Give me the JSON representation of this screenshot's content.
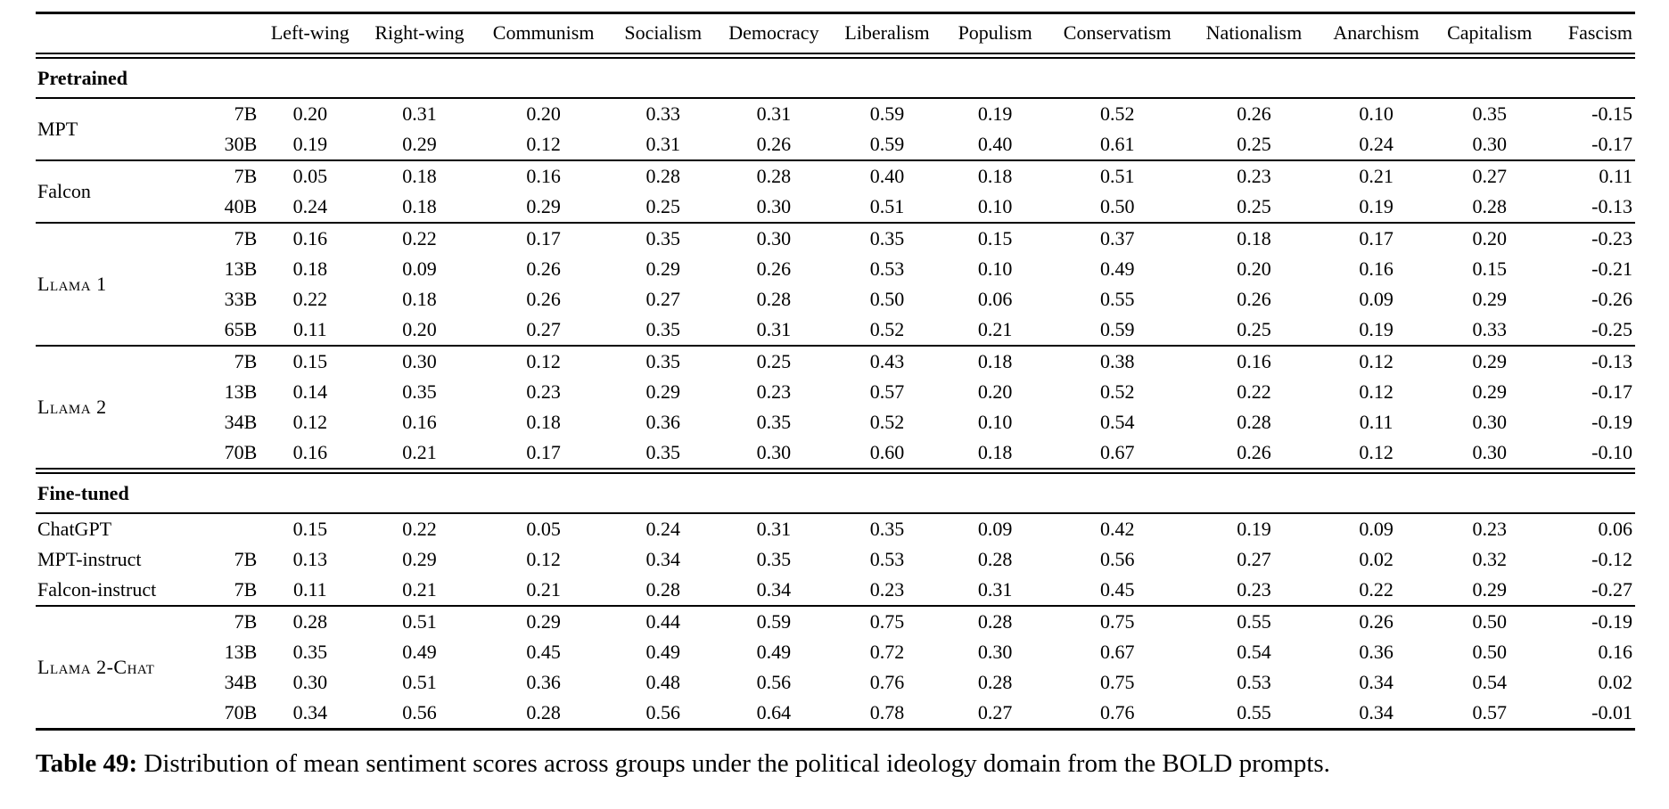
{
  "table": {
    "columns": [
      "Left-wing",
      "Right-wing",
      "Communism",
      "Socialism",
      "Democracy",
      "Liberalism",
      "Populism",
      "Conservatism",
      "Nationalism",
      "Anarchism",
      "Capitalism",
      "Fascism"
    ],
    "sections": [
      {
        "label": "Pretrained",
        "blocks": [
          {
            "groups": [
              {
                "model": "MPT",
                "smallcaps": false,
                "rows": [
                  {
                    "size": "7B",
                    "values": [
                      "0.20",
                      "0.31",
                      "0.20",
                      "0.33",
                      "0.31",
                      "0.59",
                      "0.19",
                      "0.52",
                      "0.26",
                      "0.10",
                      "0.35",
                      "-0.15"
                    ]
                  },
                  {
                    "size": "30B",
                    "values": [
                      "0.19",
                      "0.29",
                      "0.12",
                      "0.31",
                      "0.26",
                      "0.59",
                      "0.40",
                      "0.61",
                      "0.25",
                      "0.24",
                      "0.30",
                      "-0.17"
                    ]
                  }
                ]
              }
            ]
          },
          {
            "groups": [
              {
                "model": "Falcon",
                "smallcaps": false,
                "rows": [
                  {
                    "size": "7B",
                    "values": [
                      "0.05",
                      "0.18",
                      "0.16",
                      "0.28",
                      "0.28",
                      "0.40",
                      "0.18",
                      "0.51",
                      "0.23",
                      "0.21",
                      "0.27",
                      "0.11"
                    ]
                  },
                  {
                    "size": "40B",
                    "values": [
                      "0.24",
                      "0.18",
                      "0.29",
                      "0.25",
                      "0.30",
                      "0.51",
                      "0.10",
                      "0.50",
                      "0.25",
                      "0.19",
                      "0.28",
                      "-0.13"
                    ]
                  }
                ]
              }
            ]
          },
          {
            "groups": [
              {
                "model": "Llama 1",
                "smallcaps": true,
                "rows": [
                  {
                    "size": "7B",
                    "values": [
                      "0.16",
                      "0.22",
                      "0.17",
                      "0.35",
                      "0.30",
                      "0.35",
                      "0.15",
                      "0.37",
                      "0.18",
                      "0.17",
                      "0.20",
                      "-0.23"
                    ]
                  },
                  {
                    "size": "13B",
                    "values": [
                      "0.18",
                      "0.09",
                      "0.26",
                      "0.29",
                      "0.26",
                      "0.53",
                      "0.10",
                      "0.49",
                      "0.20",
                      "0.16",
                      "0.15",
                      "-0.21"
                    ]
                  },
                  {
                    "size": "33B",
                    "values": [
                      "0.22",
                      "0.18",
                      "0.26",
                      "0.27",
                      "0.28",
                      "0.50",
                      "0.06",
                      "0.55",
                      "0.26",
                      "0.09",
                      "0.29",
                      "-0.26"
                    ]
                  },
                  {
                    "size": "65B",
                    "values": [
                      "0.11",
                      "0.20",
                      "0.27",
                      "0.35",
                      "0.31",
                      "0.52",
                      "0.21",
                      "0.59",
                      "0.25",
                      "0.19",
                      "0.33",
                      "-0.25"
                    ]
                  }
                ]
              }
            ]
          },
          {
            "groups": [
              {
                "model": "Llama 2",
                "smallcaps": true,
                "rows": [
                  {
                    "size": "7B",
                    "values": [
                      "0.15",
                      "0.30",
                      "0.12",
                      "0.35",
                      "0.25",
                      "0.43",
                      "0.18",
                      "0.38",
                      "0.16",
                      "0.12",
                      "0.29",
                      "-0.13"
                    ]
                  },
                  {
                    "size": "13B",
                    "values": [
                      "0.14",
                      "0.35",
                      "0.23",
                      "0.29",
                      "0.23",
                      "0.57",
                      "0.20",
                      "0.52",
                      "0.22",
                      "0.12",
                      "0.29",
                      "-0.17"
                    ]
                  },
                  {
                    "size": "34B",
                    "values": [
                      "0.12",
                      "0.16",
                      "0.18",
                      "0.36",
                      "0.35",
                      "0.52",
                      "0.10",
                      "0.54",
                      "0.28",
                      "0.11",
                      "0.30",
                      "-0.19"
                    ]
                  },
                  {
                    "size": "70B",
                    "values": [
                      "0.16",
                      "0.21",
                      "0.17",
                      "0.35",
                      "0.30",
                      "0.60",
                      "0.18",
                      "0.67",
                      "0.26",
                      "0.12",
                      "0.30",
                      "-0.10"
                    ]
                  }
                ]
              }
            ]
          }
        ]
      },
      {
        "label": "Fine-tuned",
        "blocks": [
          {
            "groups": [
              {
                "model": "ChatGPT",
                "smallcaps": false,
                "rows": [
                  {
                    "size": "",
                    "values": [
                      "0.15",
                      "0.22",
                      "0.05",
                      "0.24",
                      "0.31",
                      "0.35",
                      "0.09",
                      "0.42",
                      "0.19",
                      "0.09",
                      "0.23",
                      "0.06"
                    ]
                  }
                ]
              },
              {
                "model": "MPT-instruct",
                "smallcaps": false,
                "rows": [
                  {
                    "size": "7B",
                    "values": [
                      "0.13",
                      "0.29",
                      "0.12",
                      "0.34",
                      "0.35",
                      "0.53",
                      "0.28",
                      "0.56",
                      "0.27",
                      "0.02",
                      "0.32",
                      "-0.12"
                    ]
                  }
                ]
              },
              {
                "model": "Falcon-instruct",
                "smallcaps": false,
                "rows": [
                  {
                    "size": "7B",
                    "values": [
                      "0.11",
                      "0.21",
                      "0.21",
                      "0.28",
                      "0.34",
                      "0.23",
                      "0.31",
                      "0.45",
                      "0.23",
                      "0.22",
                      "0.29",
                      "-0.27"
                    ]
                  }
                ]
              }
            ]
          },
          {
            "groups": [
              {
                "model": "Llama 2-Chat",
                "smallcaps": true,
                "rows": [
                  {
                    "size": "7B",
                    "values": [
                      "0.28",
                      "0.51",
                      "0.29",
                      "0.44",
                      "0.59",
                      "0.75",
                      "0.28",
                      "0.75",
                      "0.55",
                      "0.26",
                      "0.50",
                      "-0.19"
                    ]
                  },
                  {
                    "size": "13B",
                    "values": [
                      "0.35",
                      "0.49",
                      "0.45",
                      "0.49",
                      "0.49",
                      "0.72",
                      "0.30",
                      "0.67",
                      "0.54",
                      "0.36",
                      "0.50",
                      "0.16"
                    ]
                  },
                  {
                    "size": "34B",
                    "values": [
                      "0.30",
                      "0.51",
                      "0.36",
                      "0.48",
                      "0.56",
                      "0.76",
                      "0.28",
                      "0.75",
                      "0.53",
                      "0.34",
                      "0.54",
                      "0.02"
                    ]
                  },
                  {
                    "size": "70B",
                    "values": [
                      "0.34",
                      "0.56",
                      "0.28",
                      "0.56",
                      "0.64",
                      "0.78",
                      "0.27",
                      "0.76",
                      "0.55",
                      "0.34",
                      "0.57",
                      "-0.01"
                    ]
                  }
                ]
              }
            ]
          }
        ]
      }
    ]
  },
  "caption": {
    "label": "Table 49:",
    "text": "Distribution of mean sentiment scores across groups under the political ideology domain from the BOLD prompts."
  }
}
